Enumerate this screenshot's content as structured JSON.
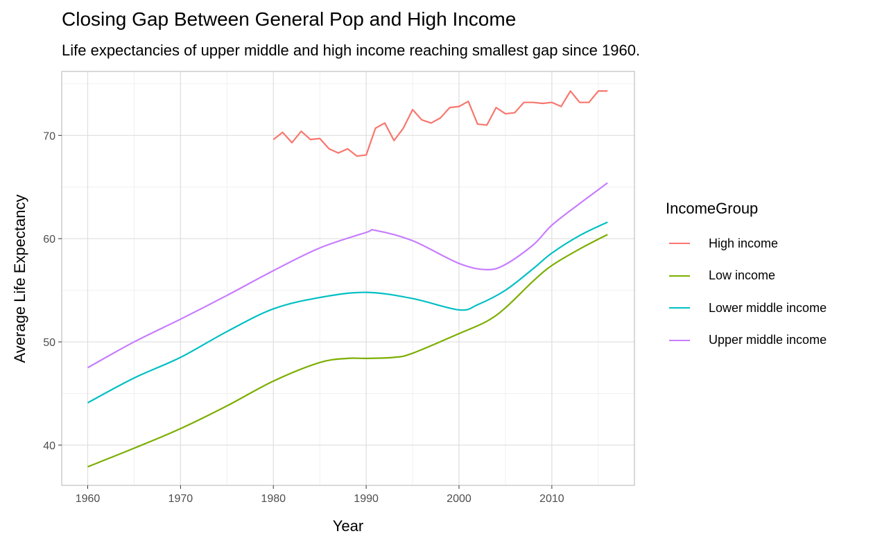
{
  "chart_data": {
    "type": "line",
    "title": "Closing Gap Between General Pop and High Income",
    "subtitle": "Life expectancies of upper middle and high income reaching smallest gap since 1960.",
    "xlabel": "Year",
    "ylabel": "Average Life Expectancy",
    "xlim": [
      1957.2,
      2018.9
    ],
    "ylim": [
      36.1,
      76.2
    ],
    "xticks": [
      1960,
      1970,
      1980,
      1990,
      2000,
      2010
    ],
    "yticks": [
      40,
      50,
      60,
      70
    ],
    "grid": true,
    "legend": {
      "title": "IncomeGroup",
      "position": "right"
    },
    "series": [
      {
        "name": "High income",
        "color": "#F8766D",
        "smooth": false,
        "x": [
          1980,
          1981,
          1982,
          1983,
          1984,
          1985,
          1986,
          1987,
          1988,
          1989,
          1990,
          1991,
          1992,
          1993,
          1994,
          1995,
          1996,
          1997,
          1998,
          1999,
          2000,
          2001,
          2002,
          2003,
          2004,
          2005,
          2006,
          2007,
          2008,
          2009,
          2010,
          2011,
          2012,
          2013,
          2014,
          2015,
          2016
        ],
        "y": [
          69.6,
          70.3,
          69.3,
          70.4,
          69.6,
          69.7,
          68.7,
          68.3,
          68.7,
          68.0,
          68.1,
          70.7,
          71.2,
          69.5,
          70.7,
          72.5,
          71.5,
          71.2,
          71.7,
          72.7,
          72.8,
          73.3,
          71.1,
          71.0,
          72.7,
          72.1,
          72.2,
          73.2,
          73.2,
          73.1,
          73.2,
          72.8,
          74.3,
          73.2,
          73.2,
          74.3,
          74.3
        ]
      },
      {
        "name": "Low income",
        "color": "#7CAE00",
        "smooth": true,
        "x": [
          1960,
          1965,
          1970,
          1975,
          1980,
          1985,
          1988,
          1990,
          1993,
          1995,
          2000,
          2003,
          2005,
          2008,
          2010,
          2013,
          2016
        ],
        "y": [
          37.9,
          39.7,
          41.6,
          43.8,
          46.2,
          48.0,
          48.4,
          48.4,
          48.5,
          48.9,
          50.8,
          52.0,
          53.3,
          55.9,
          57.4,
          59.0,
          60.4
        ]
      },
      {
        "name": "Lower middle income",
        "color": "#00BFC4",
        "smooth": true,
        "x": [
          1960,
          1965,
          1970,
          1975,
          1980,
          1985,
          1990,
          1995,
          2000,
          2002,
          2005,
          2008,
          2010,
          2013,
          2016
        ],
        "y": [
          44.1,
          46.5,
          48.5,
          51.0,
          53.2,
          54.3,
          54.8,
          54.2,
          53.1,
          53.6,
          55.0,
          57.1,
          58.6,
          60.3,
          61.6
        ]
      },
      {
        "name": "Upper middle income",
        "color": "#C77CFF",
        "smooth": true,
        "x": [
          1960,
          1965,
          1970,
          1975,
          1980,
          1985,
          1990,
          1991,
          1995,
          2000,
          2003,
          2005,
          2008,
          2010,
          2013,
          2016
        ],
        "y": [
          47.5,
          50.0,
          52.2,
          54.5,
          56.9,
          59.1,
          60.6,
          60.8,
          59.8,
          57.6,
          57.0,
          57.5,
          59.4,
          61.3,
          63.4,
          65.4
        ]
      }
    ]
  }
}
